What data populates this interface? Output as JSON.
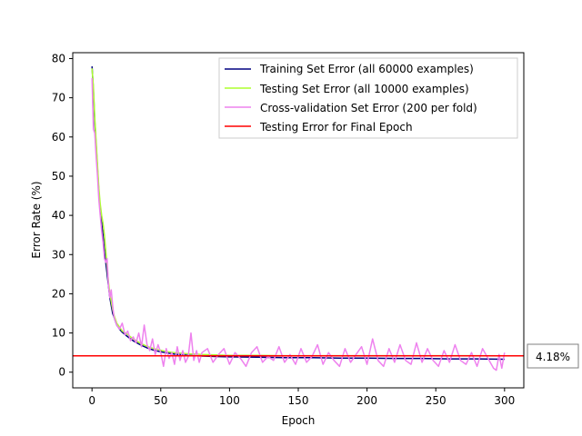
{
  "chart_data": {
    "type": "line",
    "title": "",
    "xlabel": "Epoch",
    "ylabel": "Error Rate (%)",
    "xlim": [
      -14,
      314
    ],
    "ylim": [
      -4,
      81.5
    ],
    "xticks": [
      0,
      50,
      100,
      150,
      200,
      250,
      300
    ],
    "yticks": [
      0,
      10,
      20,
      30,
      40,
      50,
      60,
      70,
      80
    ],
    "grid": false,
    "legend_position": "top-right",
    "final_error_label": "4.18%",
    "final_error_value": 4.18,
    "series": [
      {
        "name": "Training Set Error (all 60000 examples)",
        "color": "#000080",
        "x": [
          0,
          1,
          2,
          3,
          4,
          5,
          6,
          7,
          8,
          9,
          10,
          11,
          12,
          13,
          14,
          15,
          16,
          17,
          18,
          19,
          20,
          22,
          25,
          30,
          35,
          40,
          45,
          50,
          55,
          60,
          70,
          80,
          90,
          100,
          120,
          140,
          160,
          180,
          200,
          220,
          240,
          260,
          280,
          300
        ],
        "values": [
          78,
          72,
          64,
          58,
          52,
          46,
          42,
          38,
          35,
          31,
          28,
          25,
          22,
          19,
          17,
          15,
          14,
          13,
          12,
          11.5,
          11,
          10.2,
          9.3,
          8.0,
          7.0,
          6.2,
          5.6,
          5.2,
          4.9,
          4.6,
          4.3,
          4.1,
          4.0,
          3.9,
          3.8,
          3.7,
          3.7,
          3.6,
          3.6,
          3.5,
          3.5,
          3.4,
          3.4,
          3.3
        ]
      },
      {
        "name": "Testing Set Error (all 10000 examples)",
        "color": "#adff2f",
        "x": [
          0,
          1,
          2,
          3,
          4,
          5,
          6,
          7,
          8,
          9,
          10,
          11,
          12,
          13,
          14,
          15,
          16,
          17,
          18,
          19,
          20,
          22,
          25,
          30,
          35,
          40,
          45,
          50,
          55,
          60,
          70,
          80,
          90,
          100,
          120,
          140,
          160,
          180,
          200,
          220,
          240,
          260,
          280,
          300
        ],
        "values": [
          77.5,
          73,
          65,
          59,
          53,
          47,
          43,
          40,
          38,
          35,
          31,
          27,
          23,
          20,
          18,
          16,
          14.5,
          13.5,
          12.5,
          12,
          11.5,
          10.5,
          9.8,
          8.5,
          7.4,
          6.6,
          6.0,
          5.6,
          5.2,
          5.0,
          4.7,
          4.5,
          4.4,
          4.3,
          4.3,
          4.2,
          4.2,
          4.2,
          4.2,
          4.2,
          4.2,
          4.2,
          4.2,
          4.18
        ]
      },
      {
        "name": "Cross-validation Set Error (200 per fold)",
        "color": "#ee82ee",
        "x": [
          0,
          1,
          2,
          3,
          4,
          5,
          6,
          7,
          8,
          9,
          10,
          11,
          12,
          13,
          14,
          15,
          16,
          18,
          20,
          22,
          24,
          26,
          28,
          30,
          32,
          34,
          36,
          38,
          40,
          42,
          44,
          46,
          48,
          50,
          52,
          54,
          56,
          58,
          60,
          62,
          64,
          66,
          68,
          70,
          72,
          74,
          76,
          78,
          80,
          84,
          88,
          92,
          96,
          100,
          104,
          108,
          112,
          116,
          120,
          124,
          128,
          132,
          136,
          140,
          144,
          148,
          152,
          156,
          160,
          164,
          168,
          172,
          176,
          180,
          184,
          188,
          192,
          196,
          200,
          204,
          208,
          212,
          216,
          220,
          224,
          228,
          232,
          236,
          240,
          244,
          248,
          252,
          256,
          260,
          264,
          268,
          272,
          276,
          280,
          284,
          288,
          292,
          294,
          296,
          298,
          300
        ],
        "values": [
          75,
          62,
          61,
          55,
          50,
          44,
          40,
          36,
          33,
          29,
          28,
          29,
          22,
          19,
          21,
          17,
          14,
          12,
          11,
          12.5,
          9.5,
          10.5,
          8,
          9,
          7.5,
          10,
          6.5,
          12,
          7,
          5.5,
          8.5,
          4.5,
          7,
          5,
          1.5,
          6,
          3.5,
          5,
          2,
          6.5,
          3,
          5.5,
          2.5,
          4,
          10,
          3,
          5.5,
          2.5,
          5,
          6,
          2.5,
          4.5,
          6,
          2,
          5,
          3.5,
          1.5,
          5,
          6.5,
          2.5,
          4,
          3,
          6.5,
          2.5,
          4.5,
          2,
          6,
          2.5,
          4,
          7,
          2,
          5,
          3,
          1.5,
          6,
          2.5,
          4.5,
          6.5,
          2,
          8.5,
          3,
          1.5,
          6,
          2.5,
          7,
          3,
          2,
          7.5,
          2.5,
          6,
          3,
          1.5,
          5.5,
          2.5,
          7,
          3,
          2,
          5,
          1.5,
          6,
          3.5,
          1,
          0.5,
          4.5,
          1,
          5
        ]
      },
      {
        "name": "Testing Error for Final Epoch",
        "color": "#ff0000",
        "x": [
          -14,
          314
        ],
        "values": [
          4.18,
          4.18
        ]
      }
    ]
  }
}
